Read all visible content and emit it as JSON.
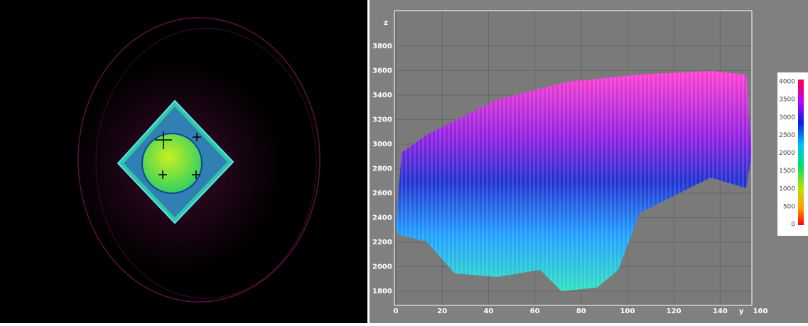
{
  "plot": {
    "z_label": "z",
    "y_label": "y",
    "z_ticks": [
      1800,
      2000,
      2200,
      2400,
      2600,
      2800,
      3000,
      3200,
      3400,
      3600,
      3800
    ],
    "y_ticks": [
      0,
      20,
      40,
      60,
      80,
      100,
      120,
      140
    ],
    "y_end_label": "160"
  },
  "colorbar": {
    "ticks": [
      0,
      500,
      1000,
      1500,
      2000,
      2500,
      3000,
      3500,
      4000
    ]
  }
}
